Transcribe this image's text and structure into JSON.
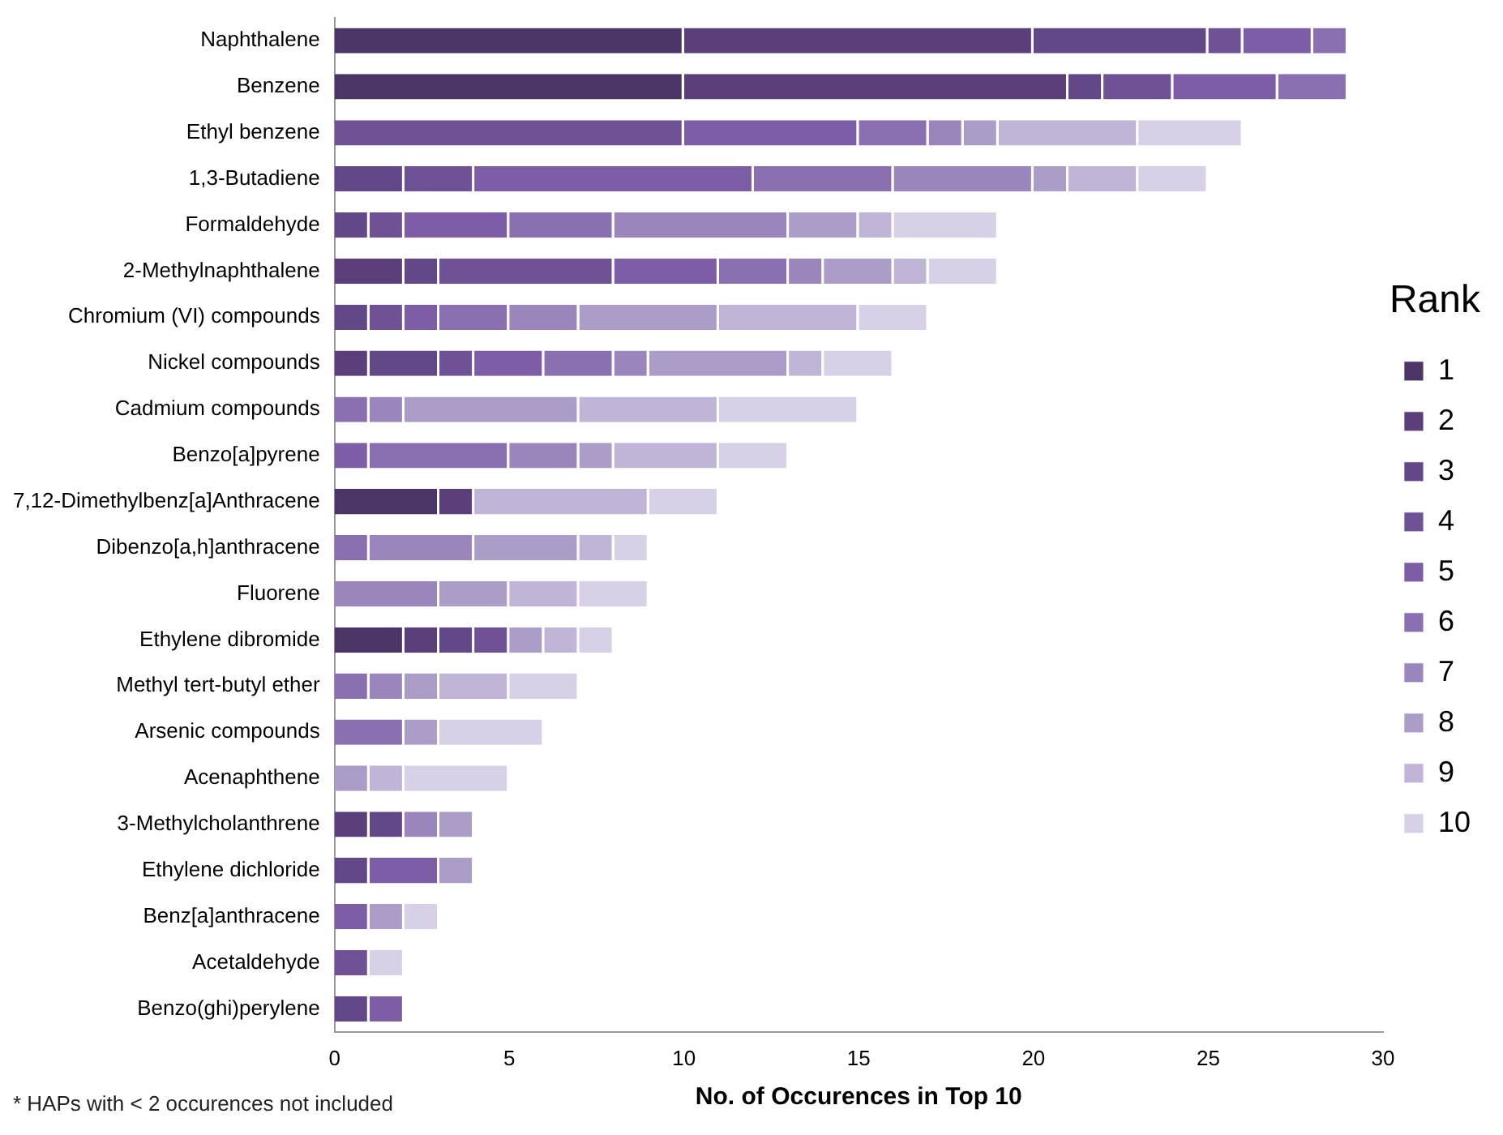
{
  "chart_data": {
    "type": "bar",
    "orientation": "horizontal",
    "stacked": true,
    "xlabel": "No. of Occurences in Top 10",
    "legend_title": "Rank",
    "legend": "right",
    "grid": false,
    "categories": [
      "Naphthalene",
      "Benzene",
      "Ethyl benzene",
      "1,3-Butadiene",
      "Formaldehyde",
      "2-Methylnaphthalene",
      "Chromium (VI) compounds",
      "Nickel compounds",
      "Cadmium compounds",
      "Benzo[a]pyrene",
      "7,12-Dimethylbenz[a]Anthracene",
      "Dibenzo[a,h]anthracene",
      "Fluorene",
      "Ethylene dibromide",
      "Methyl tert-butyl ether",
      "Arsenic compounds",
      "Acenaphthene",
      "3-Methylcholanthrene",
      "Ethylene dichloride",
      "Benz[a]anthracene",
      "Acetaldehyde",
      "Benzo(ghi)perylene"
    ],
    "xlim": [
      0,
      30
    ],
    "xticks": [
      0,
      5,
      10,
      15,
      20,
      25,
      30
    ],
    "series": [
      {
        "name": "1",
        "color": "#4b3566",
        "values": [
          10,
          10,
          0,
          0,
          0,
          0,
          0,
          0,
          0,
          0,
          3,
          0,
          0,
          2,
          0,
          0,
          0,
          0,
          0,
          0,
          0,
          0
        ]
      },
      {
        "name": "2",
        "color": "#5a3f7a",
        "values": [
          10,
          11,
          0,
          0,
          0,
          2,
          0,
          1,
          0,
          0,
          1,
          0,
          0,
          1,
          0,
          0,
          0,
          1,
          0,
          0,
          0,
          0
        ]
      },
      {
        "name": "3",
        "color": "#634888",
        "values": [
          5,
          1,
          0,
          2,
          1,
          1,
          1,
          2,
          0,
          0,
          0,
          0,
          0,
          1,
          0,
          0,
          0,
          1,
          1,
          0,
          0,
          1
        ]
      },
      {
        "name": "4",
        "color": "#6f5295",
        "values": [
          1,
          2,
          10,
          2,
          1,
          5,
          1,
          1,
          0,
          0,
          0,
          0,
          0,
          1,
          0,
          0,
          0,
          0,
          0,
          0,
          1,
          0
        ]
      },
      {
        "name": "5",
        "color": "#7d5ea6",
        "values": [
          2,
          3,
          5,
          8,
          3,
          3,
          1,
          2,
          0,
          1,
          0,
          0,
          0,
          0,
          0,
          0,
          0,
          0,
          2,
          1,
          0,
          1
        ]
      },
      {
        "name": "6",
        "color": "#8a70b0",
        "values": [
          1,
          2,
          2,
          4,
          3,
          2,
          2,
          2,
          1,
          4,
          0,
          1,
          0,
          0,
          1,
          2,
          0,
          0,
          0,
          0,
          0,
          0
        ]
      },
      {
        "name": "7",
        "color": "#9a86bd",
        "values": [
          0,
          0,
          1,
          4,
          5,
          1,
          2,
          1,
          1,
          2,
          0,
          3,
          3,
          0,
          1,
          0,
          0,
          1,
          0,
          0,
          0,
          0
        ]
      },
      {
        "name": "8",
        "color": "#ab9cc8",
        "values": [
          0,
          0,
          1,
          1,
          2,
          2,
          4,
          4,
          5,
          1,
          0,
          3,
          2,
          1,
          1,
          1,
          1,
          1,
          1,
          1,
          0,
          0
        ]
      },
      {
        "name": "9",
        "color": "#c0b5d6",
        "values": [
          0,
          0,
          4,
          2,
          1,
          1,
          4,
          1,
          4,
          3,
          5,
          1,
          2,
          1,
          2,
          0,
          1,
          0,
          0,
          0,
          0,
          0
        ]
      },
      {
        "name": "10",
        "color": "#d7d0e6",
        "values": [
          0,
          0,
          3,
          2,
          3,
          2,
          2,
          2,
          4,
          2,
          2,
          1,
          2,
          1,
          2,
          3,
          3,
          0,
          0,
          1,
          1,
          0
        ]
      }
    ],
    "annotations": [
      "* HAPs with < 2 occurences not included"
    ]
  }
}
